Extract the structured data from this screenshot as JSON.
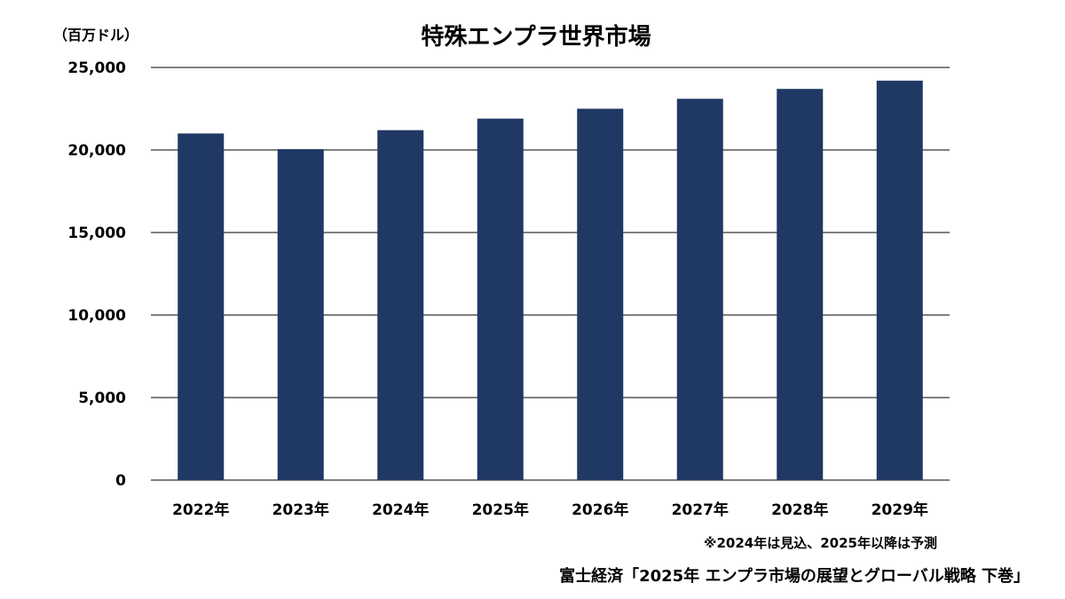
{
  "chart_data": {
    "type": "bar",
    "title": "特殊エンプラ世界市場",
    "unit_label": "（百万ドル）",
    "categories": [
      "2022年",
      "2023年",
      "2024年",
      "2025年",
      "2026年",
      "2027年",
      "2028年",
      "2029年"
    ],
    "values": [
      21000,
      20050,
      21200,
      21900,
      22500,
      23100,
      23700,
      24200
    ],
    "ylim": [
      0,
      25000
    ],
    "yticks": [
      0,
      5000,
      10000,
      15000,
      20000,
      25000
    ],
    "ytick_labels": [
      "0",
      "5,000",
      "10,000",
      "15,000",
      "20,000",
      "25,000"
    ],
    "grid": true,
    "bar_color": "#203864",
    "grid_color": "#000000",
    "note": "※2024年は見込、2025年以降は予測",
    "source": "富士経済「2025年 エンプラ市場の展望とグローバル戦略 下巻」"
  }
}
